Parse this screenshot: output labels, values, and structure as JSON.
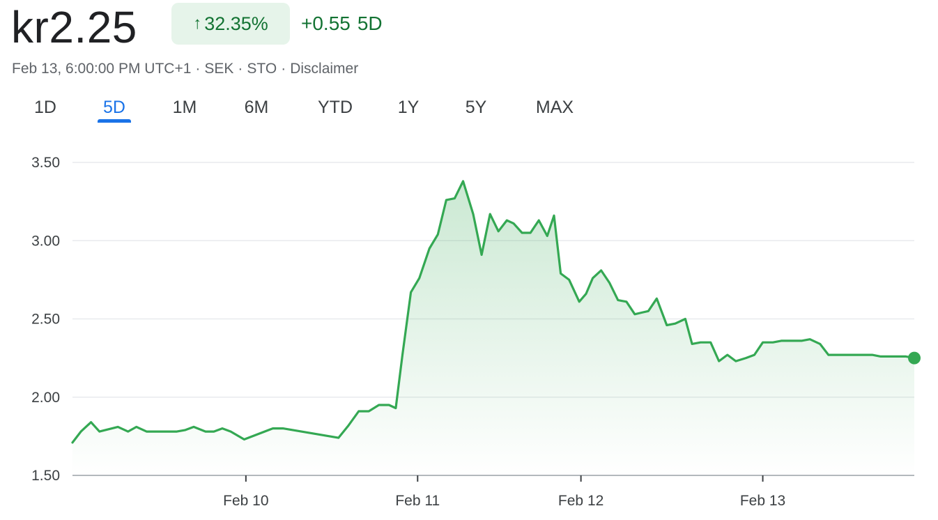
{
  "quote": {
    "price": "kr2.25",
    "change_arrow": "↑",
    "change_percent": "32.35%",
    "change_abs": "+0.55",
    "period": "5D",
    "timestamp": "Feb 13, 6:00:00 PM UTC+1",
    "currency": "SEK",
    "exchange": "STO",
    "disclaimer": "Disclaimer",
    "separator": "·"
  },
  "tabs": [
    {
      "label": "1D",
      "active": false
    },
    {
      "label": "5D",
      "active": true
    },
    {
      "label": "1M",
      "active": false
    },
    {
      "label": "6M",
      "active": false
    },
    {
      "label": "YTD",
      "active": false
    },
    {
      "label": "1Y",
      "active": false
    },
    {
      "label": "5Y",
      "active": false
    },
    {
      "label": "MAX",
      "active": false
    }
  ],
  "colors": {
    "line": "#34a853",
    "fill": "#34a853",
    "positive_text": "#137333",
    "positive_bg": "#e6f4ea",
    "active_tab": "#1a73e8",
    "grid": "#e8eaed"
  },
  "chart_data": {
    "type": "area",
    "title": "",
    "xlabel": "",
    "ylabel": "",
    "ylim": [
      1.5,
      3.5
    ],
    "yticks": [
      1.5,
      2.0,
      2.5,
      3.0,
      3.5
    ],
    "ytick_labels": [
      "1.50",
      "2.00",
      "2.50",
      "3.00",
      "3.50"
    ],
    "x_range": [
      0,
      5
    ],
    "xticks": [
      {
        "x": 1.03,
        "label": "Feb 10"
      },
      {
        "x": 2.05,
        "label": "Feb 11"
      },
      {
        "x": 3.02,
        "label": "Feb 12"
      },
      {
        "x": 4.1,
        "label": "Feb 13"
      }
    ],
    "grid": true,
    "legend": "none",
    "end_marker": true,
    "series": [
      {
        "x": [
          0,
          0.05,
          0.11,
          0.16,
          0.27,
          0.33,
          0.38,
          0.44,
          0.62,
          0.67,
          0.72,
          0.79,
          0.84,
          0.89,
          0.94,
          1.02,
          1.19,
          1.25,
          1.58,
          1.64,
          1.7,
          1.76,
          1.82,
          1.88,
          1.92,
          1.96,
          2.01,
          2.06,
          2.12,
          2.17,
          2.22,
          2.27,
          2.32,
          2.38,
          2.43,
          2.48,
          2.53,
          2.58,
          2.62,
          2.67,
          2.72,
          2.77,
          2.82,
          2.86,
          2.9,
          2.95,
          3.01,
          3.05,
          3.09,
          3.14,
          3.19,
          3.24,
          3.29,
          3.34,
          3.38,
          3.42,
          3.47,
          3.53,
          3.58,
          3.64,
          3.68,
          3.73,
          3.79,
          3.84,
          3.89,
          3.94,
          4.0,
          4.05,
          4.1,
          4.16,
          4.21,
          4.26,
          4.33,
          4.38,
          4.44,
          4.49,
          4.55,
          4.6,
          4.65,
          4.7,
          4.75,
          4.8,
          4.86,
          4.91,
          4.95,
          5.0
        ],
        "y": [
          1.71,
          1.78,
          1.84,
          1.78,
          1.81,
          1.78,
          1.81,
          1.78,
          1.78,
          1.79,
          1.81,
          1.78,
          1.78,
          1.8,
          1.78,
          1.73,
          1.8,
          1.8,
          1.74,
          1.82,
          1.91,
          1.91,
          1.95,
          1.95,
          1.93,
          2.27,
          2.67,
          2.76,
          2.95,
          3.04,
          3.26,
          3.27,
          3.38,
          3.17,
          2.91,
          3.17,
          3.06,
          3.13,
          3.11,
          3.05,
          3.05,
          3.13,
          3.03,
          3.16,
          2.79,
          2.75,
          2.61,
          2.66,
          2.76,
          2.81,
          2.73,
          2.62,
          2.61,
          2.53,
          2.54,
          2.55,
          2.63,
          2.46,
          2.47,
          2.5,
          2.34,
          2.35,
          2.35,
          2.23,
          2.27,
          2.23,
          2.25,
          2.27,
          2.35,
          2.35,
          2.36,
          2.36,
          2.36,
          2.37,
          2.34,
          2.27,
          2.27,
          2.27,
          2.27,
          2.27,
          2.27,
          2.26,
          2.26,
          2.26,
          2.26,
          2.25
        ]
      }
    ]
  }
}
